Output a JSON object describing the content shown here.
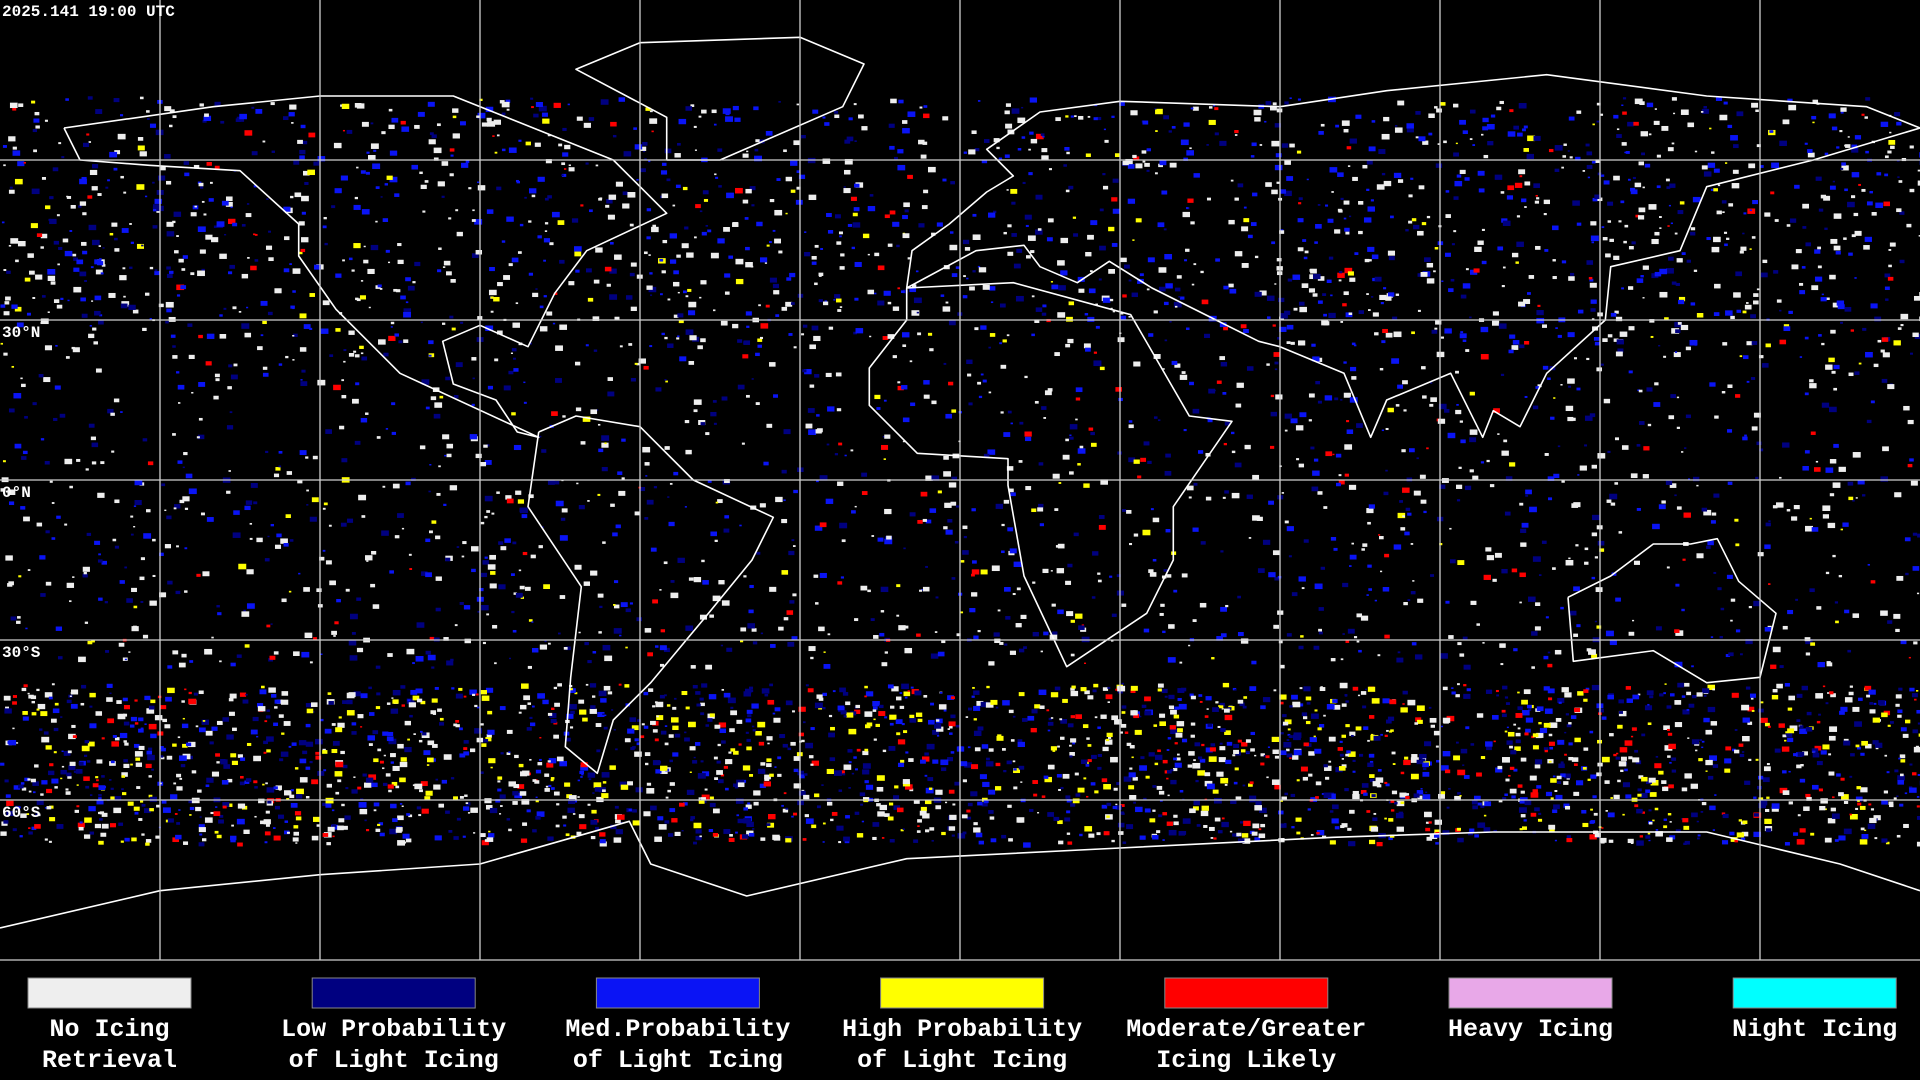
{
  "header": {
    "timestamp": "2025.141 19:00 UTC"
  },
  "latitude_labels": [
    "30°N",
    "0°N",
    "30°S",
    "60°S"
  ],
  "legend": [
    {
      "color": "#eeeeee",
      "lines": [
        "No Icing",
        "Retrieval"
      ]
    },
    {
      "color": "#000080",
      "lines": [
        "Low Probability",
        "of Light Icing"
      ]
    },
    {
      "color": "#0a14f5",
      "lines": [
        "Med.Probability",
        "of Light Icing"
      ]
    },
    {
      "color": "#ffff00",
      "lines": [
        "High Probability",
        "of Light Icing"
      ]
    },
    {
      "color": "#ff0000",
      "lines": [
        "Moderate/Greater",
        "Icing Likely"
      ]
    },
    {
      "color": "#e8a8e8",
      "lines": [
        "Heavy Icing"
      ]
    },
    {
      "color": "#00ffff",
      "lines": [
        "Night Icing"
      ]
    }
  ]
}
